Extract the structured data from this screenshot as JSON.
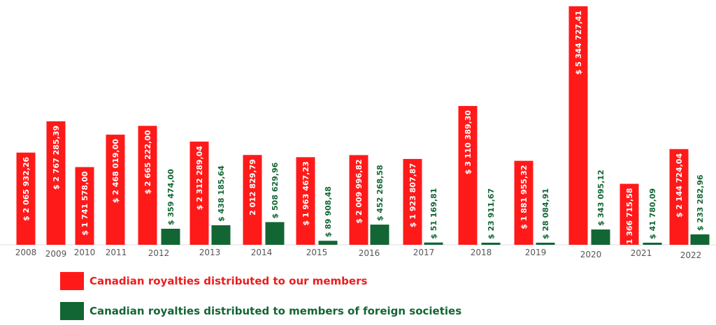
{
  "chart_data": {
    "type": "bar",
    "categories": [
      "2008",
      "2009",
      "2010",
      "2011",
      "2012",
      "2013",
      "2014",
      "2015",
      "2016",
      "2017",
      "2018",
      "2019",
      "2020",
      "2021",
      "2022"
    ],
    "series": [
      {
        "name": "Canadian royalties distributed to our members",
        "color": "#ff1a1a",
        "values": [
          2065932.26,
          2767285.39,
          1741578.0,
          2468019.0,
          2665222.0,
          2312289.04,
          2012829.79,
          1963467.23,
          2009996.82,
          1923807.87,
          3110389.3,
          1881955.32,
          5344727.41,
          1366715.58,
          2144724.04
        ],
        "labels": [
          "$ 2 065 932,26",
          "$ 2 767 285,39",
          "$ 1 741 578,00",
          "$ 2 468 019,00",
          "$ 2 665 222,00",
          "$ 2 312 289,04",
          "2 012 829,79",
          "$ 1 963 467,23",
          "$ 2 009 996,82",
          "$ 1 923 807,87",
          "$ 3 110 389,30",
          "$ 1 881 955,32",
          "$ 5 344 727,41",
          "$ 1 366 715,58",
          "$ 2 144 724,04"
        ]
      },
      {
        "name": "Canadian royalties distributed to members of foreign societies",
        "color": "#126634",
        "values": [
          null,
          null,
          null,
          null,
          359474.0,
          438185.64,
          508629.96,
          89908.48,
          452268.58,
          51169.81,
          23911.67,
          28084.91,
          343095.12,
          41780.09,
          233282.96
        ],
        "labels": [
          "",
          "",
          "",
          "",
          "$ 359 474,00",
          "$ 438 185,64",
          "$ 508 629,96",
          "$ 89 908,48",
          "$ 452 268,58",
          "$ 51 169,81",
          "$ 23 911,67",
          "$ 28 084,91",
          "$ 343 095,12",
          "$ 41 780,09",
          "$ 233 282,96"
        ]
      }
    ],
    "legend_position": "bottom-left",
    "grid": false
  },
  "legend": {
    "items": [
      {
        "label": "Canadian royalties distributed to our members",
        "color": "#ff1a1a",
        "text_color": "#ee1c1c"
      },
      {
        "label": "Canadian royalties distributed to members of foreign societies",
        "color": "#126634",
        "text_color": "#126634"
      }
    ]
  }
}
